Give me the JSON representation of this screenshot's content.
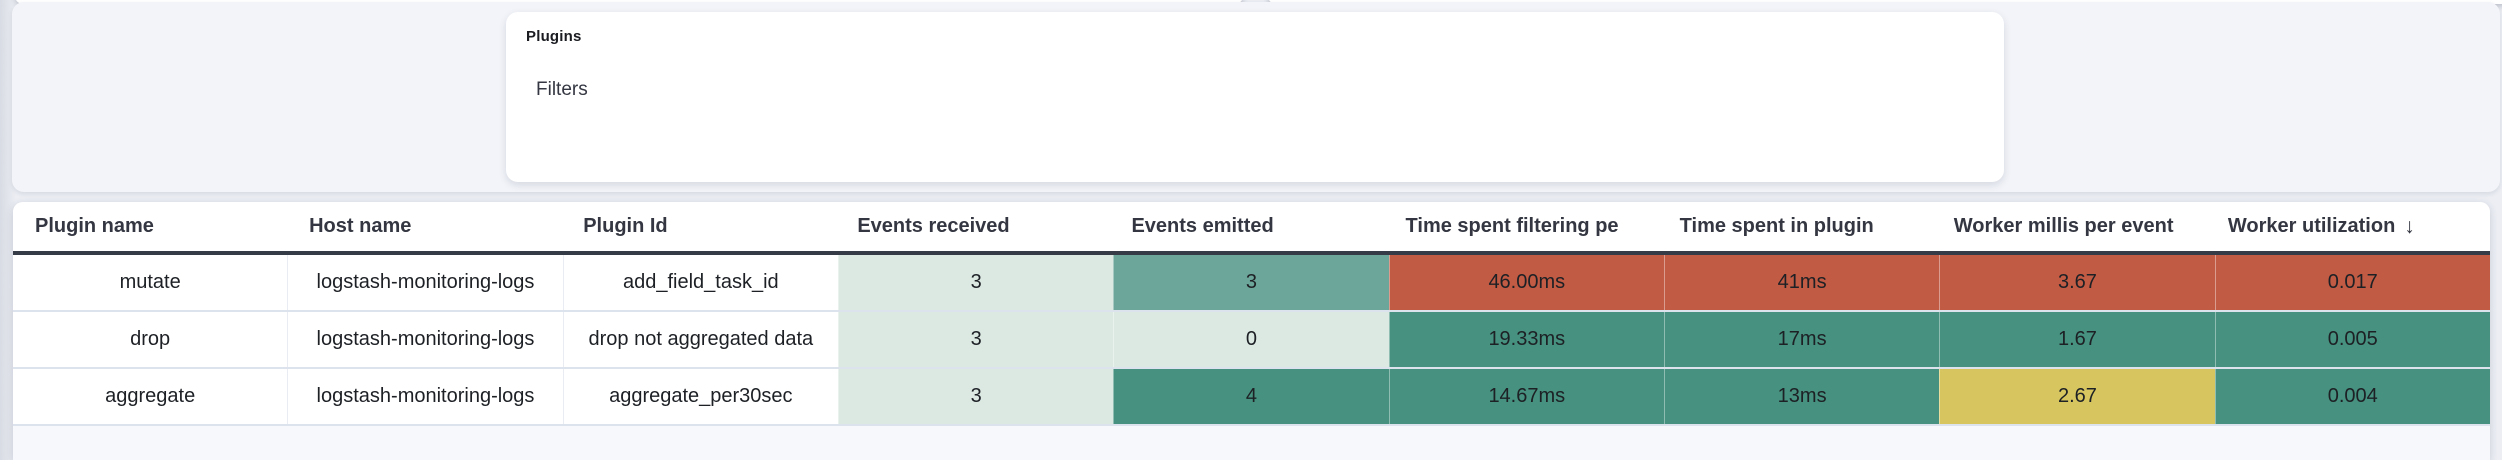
{
  "plugins_panel": {
    "title": "Plugins",
    "section_label": "Filters"
  },
  "table": {
    "sort_icon": "↓",
    "columns": [
      {
        "slug": "plugin-name",
        "label": "Plugin name",
        "sorted": false
      },
      {
        "slug": "host-name",
        "label": "Host name",
        "sorted": false
      },
      {
        "slug": "plugin-id",
        "label": "Plugin Id",
        "sorted": false
      },
      {
        "slug": "events-received",
        "label": "Events received",
        "sorted": false
      },
      {
        "slug": "events-emitted",
        "label": "Events emitted",
        "sorted": false
      },
      {
        "slug": "time-spent-filtering",
        "label": "Time spent filtering pe",
        "sorted": false
      },
      {
        "slug": "time-spent-in-plugin",
        "label": "Time spent in plugin",
        "sorted": false
      },
      {
        "slug": "worker-millis-per-event",
        "label": "Worker millis per event",
        "sorted": false
      },
      {
        "slug": "worker-utilization",
        "label": "Worker utilization",
        "sorted": true
      }
    ],
    "rows": [
      {
        "cells": [
          {
            "text": "mutate",
            "color": "none"
          },
          {
            "text": "logstash-monitoring-logs",
            "color": "none"
          },
          {
            "text": "add_field_task_id",
            "color": "none"
          },
          {
            "text": "3",
            "color": "light_green"
          },
          {
            "text": "3",
            "color": "mid_green"
          },
          {
            "text": "46.00ms",
            "color": "red"
          },
          {
            "text": "41ms",
            "color": "red"
          },
          {
            "text": "3.67",
            "color": "red"
          },
          {
            "text": "0.017",
            "color": "red"
          }
        ]
      },
      {
        "cells": [
          {
            "text": "drop",
            "color": "none"
          },
          {
            "text": "logstash-monitoring-logs",
            "color": "none"
          },
          {
            "text": "drop not aggregated data",
            "color": "none"
          },
          {
            "text": "3",
            "color": "light_green"
          },
          {
            "text": "0",
            "color": "light_green"
          },
          {
            "text": "19.33ms",
            "color": "dark_green"
          },
          {
            "text": "17ms",
            "color": "dark_green"
          },
          {
            "text": "1.67",
            "color": "dark_green"
          },
          {
            "text": "0.005",
            "color": "dark_green"
          }
        ]
      },
      {
        "cells": [
          {
            "text": "aggregate",
            "color": "none"
          },
          {
            "text": "logstash-monitoring-logs",
            "color": "none"
          },
          {
            "text": "aggregate_per30sec",
            "color": "none"
          },
          {
            "text": "3",
            "color": "light_green"
          },
          {
            "text": "4",
            "color": "dark_green"
          },
          {
            "text": "14.67ms",
            "color": "dark_green"
          },
          {
            "text": "13ms",
            "color": "dark_green"
          },
          {
            "text": "2.67",
            "color": "yellow"
          },
          {
            "text": "0.004",
            "color": "dark_green"
          }
        ]
      }
    ]
  },
  "palette": {
    "light_green": "#dce9e3",
    "mid_green": "#6ca69a",
    "dark_green": "#46917f",
    "red": "#c15b44",
    "yellow": "#d7c65f",
    "header_underline": "#353c48",
    "text": "#343741"
  }
}
